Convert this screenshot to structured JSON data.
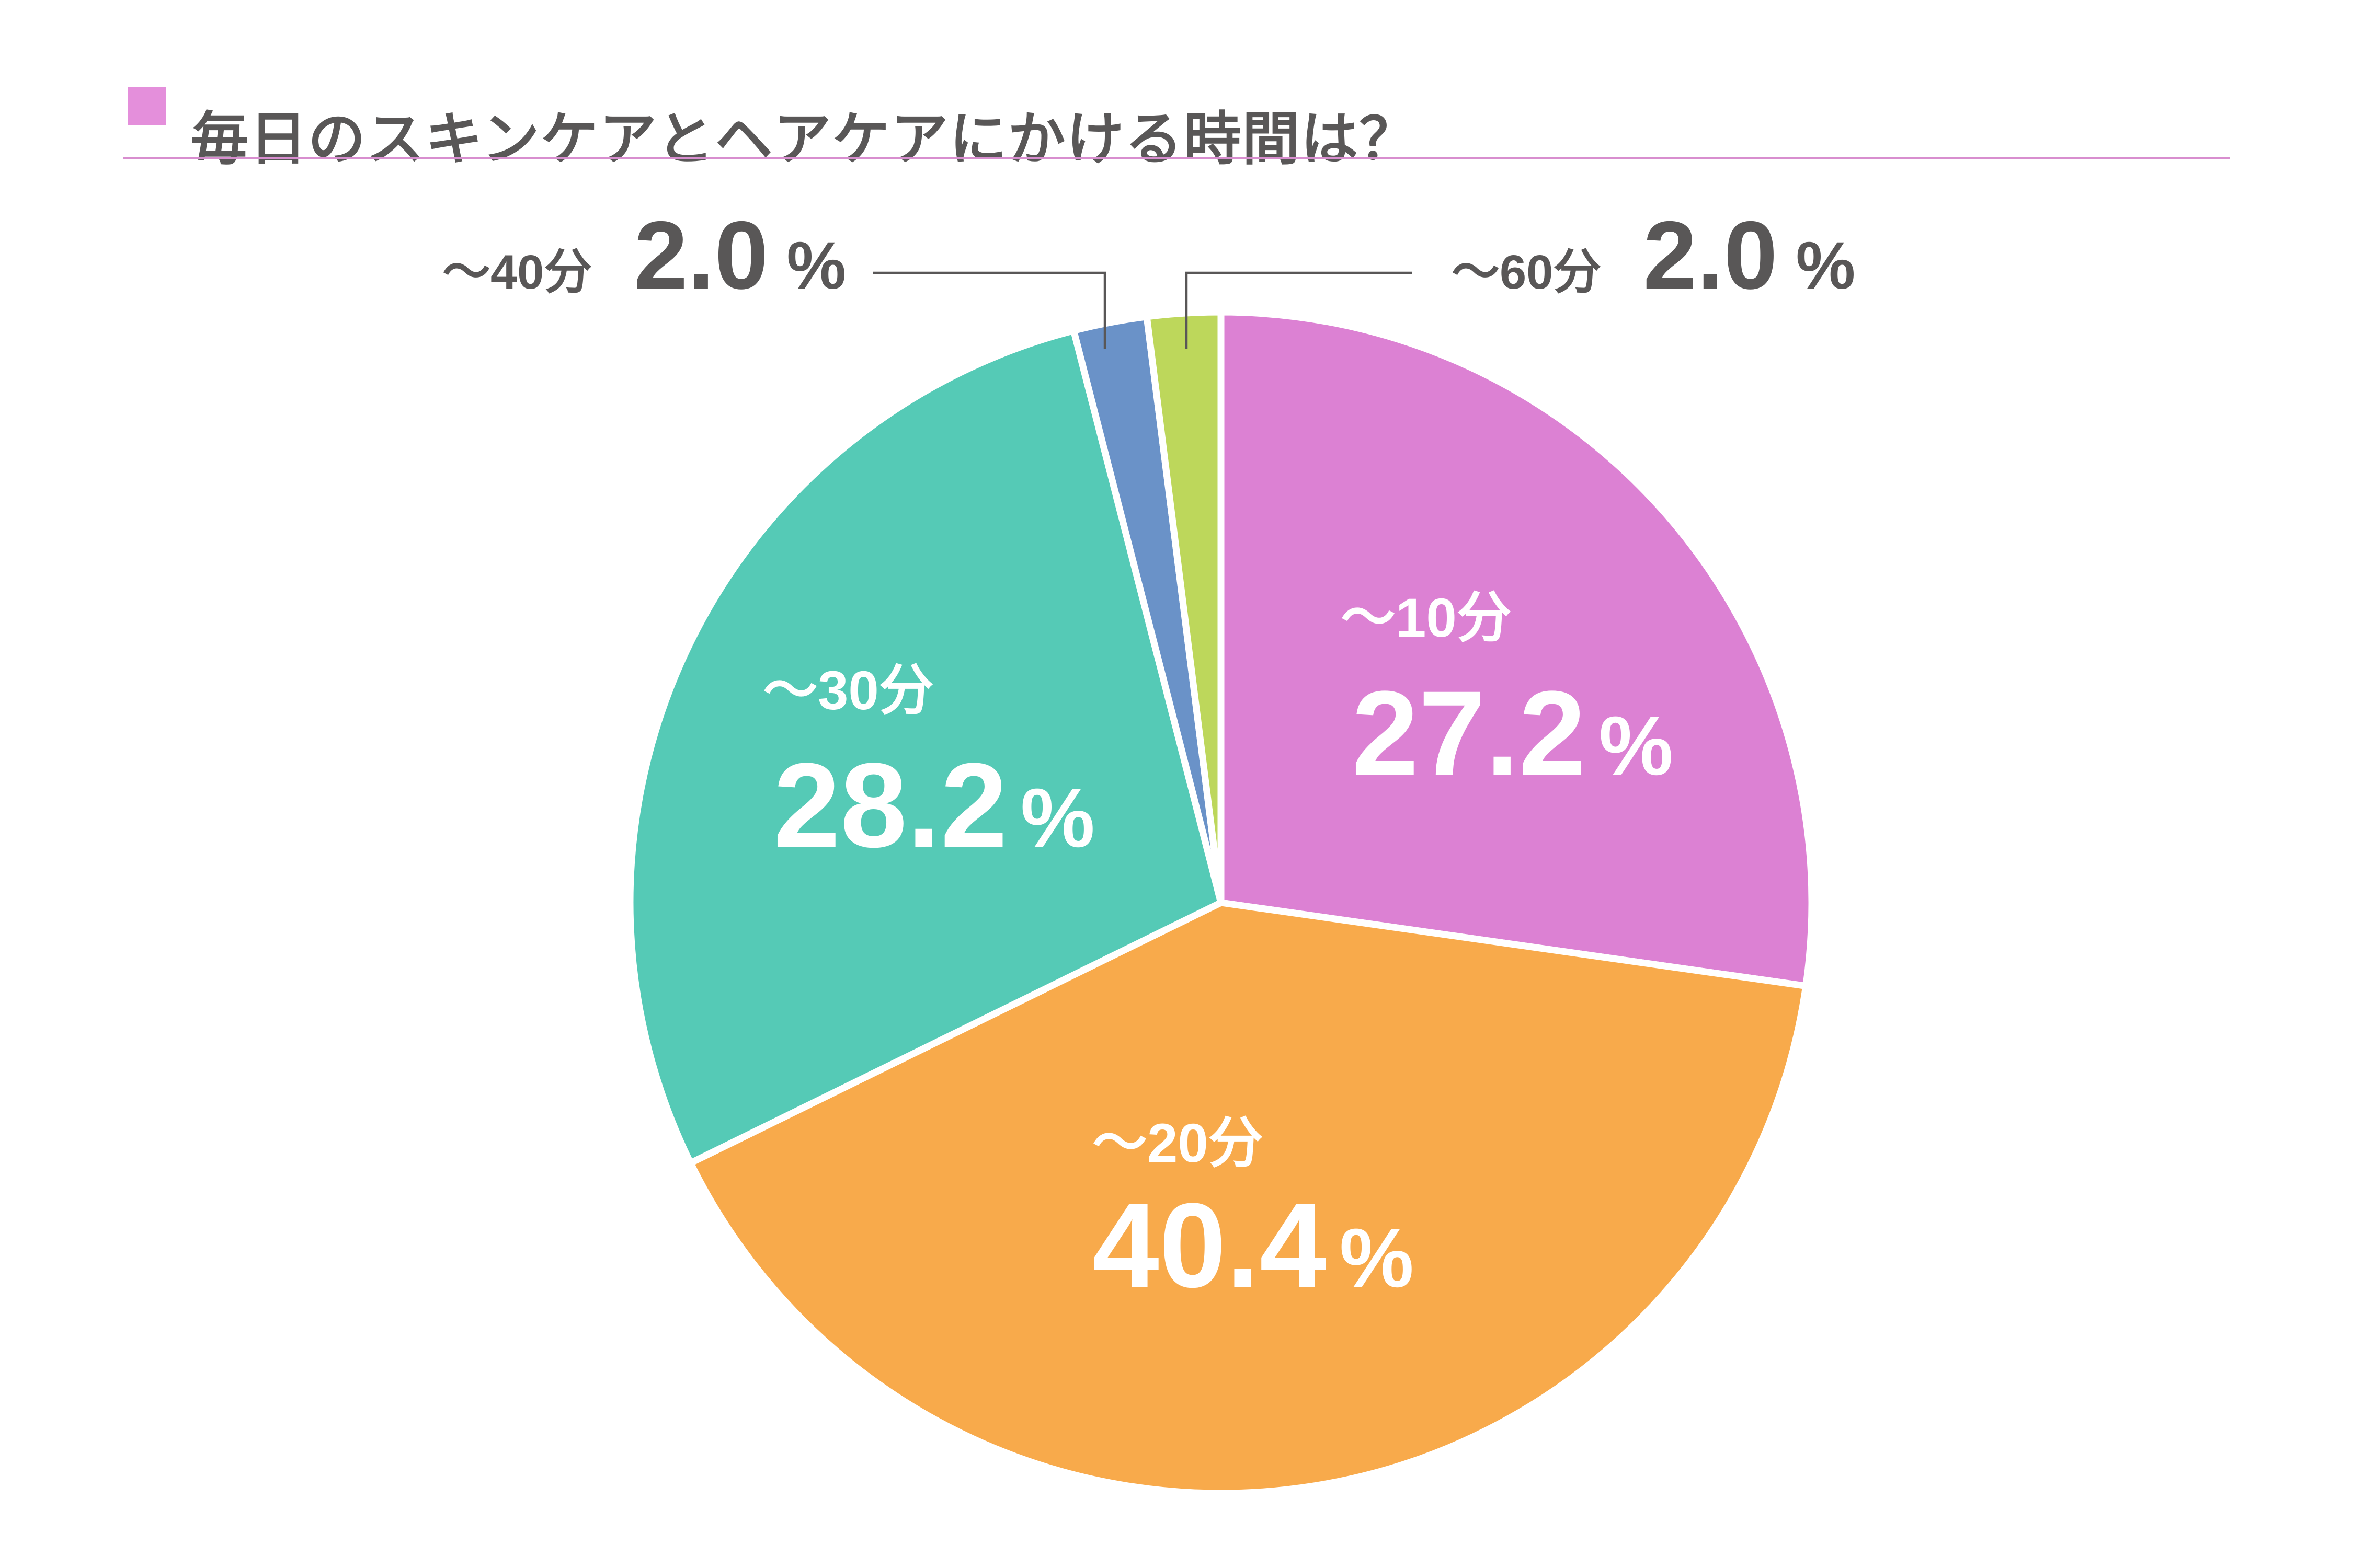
{
  "header": {
    "title": "毎日のスキンケアとヘアケアにかける時間は？",
    "bullet_icon": "pink-square-bullet",
    "accent_color": "#e48fdb",
    "underline_color": "#d88ecf",
    "text_color": "#595757"
  },
  "chart_data": {
    "type": "pie",
    "title": "毎日のスキンケアとヘアケアにかける時間は？",
    "unit": "%",
    "direction": "clockwise",
    "start_angle_deg": 0,
    "categories": [
      "～10分",
      "～20分",
      "～30分",
      "～40分",
      "～60分"
    ],
    "values": [
      27.2,
      40.4,
      28.2,
      2.0,
      2.0
    ],
    "value_labels": [
      "27.2",
      "40.4",
      "28.2",
      "2.0",
      "2.0"
    ],
    "colors": [
      "#dc81d3",
      "#f8aa4b",
      "#55cab6",
      "#6a92c8",
      "#bdd75b"
    ],
    "label_placement": [
      "inside",
      "inside",
      "inside",
      "callout-top-left",
      "callout-top-right"
    ],
    "slice_gap_color": "#ffffff",
    "leader_line_color": "#595757",
    "inside_label_color": "#ffffff",
    "outside_label_color": "#595757",
    "legend": "none"
  }
}
